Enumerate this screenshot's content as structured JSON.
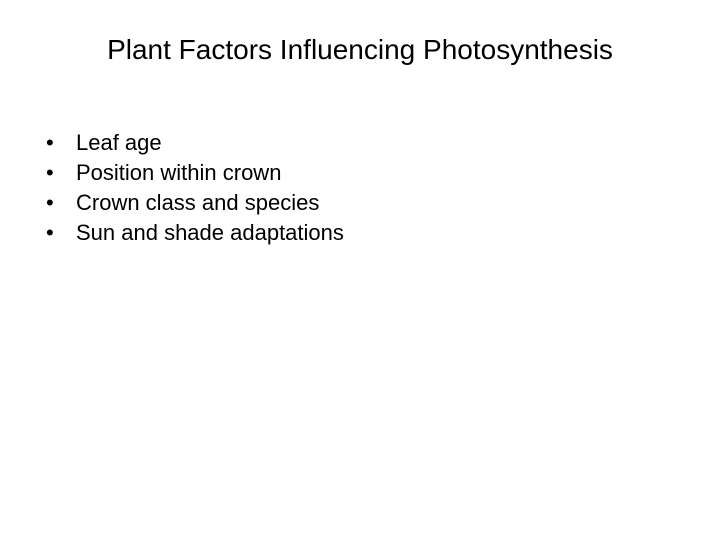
{
  "slide": {
    "title": "Plant Factors Influencing Photosynthesis",
    "title_fontsize": 28,
    "title_color": "#000000",
    "background_color": "#ffffff",
    "bullet_char": "•",
    "bullets": [
      {
        "text": "Leaf age"
      },
      {
        "text": "Position within crown"
      },
      {
        "text": "Crown class and species"
      },
      {
        "text": "Sun and shade adaptations"
      }
    ],
    "bullet_fontsize": 22,
    "bullet_color": "#000000"
  }
}
